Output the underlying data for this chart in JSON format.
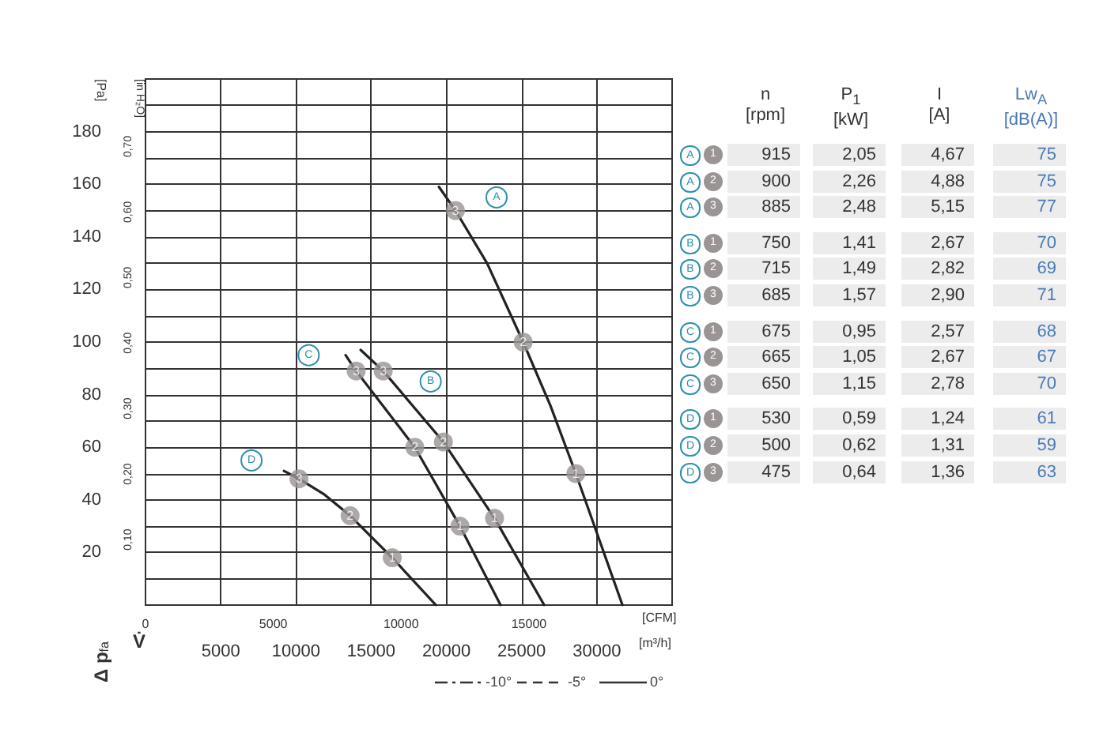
{
  "chart_data": [
    {
      "type": "line",
      "xlabel": "[m³/h]",
      "ylabel": "[Pa]",
      "x2label": "[CFM]",
      "y2label": "[in H₂O]",
      "annotations": [
        "Δ p$_{fa}$",
        "V̇",
        "-10°",
        "-5°",
        "0°",
        {
          "text": "3",
          "x": 20600,
          "y": 150
        },
        {
          "text": "2",
          "x": 25100,
          "y": 100
        },
        {
          "text": "1",
          "x": 28600,
          "y": 50
        },
        {
          "text": "3",
          "x": 15800,
          "y": 89
        },
        {
          "text": "2",
          "x": 19800,
          "y": 62
        },
        {
          "text": "1",
          "x": 23200,
          "y": 33
        },
        {
          "text": "3",
          "x": 14000,
          "y": 89
        },
        {
          "text": "2",
          "x": 17900,
          "y": 60
        },
        {
          "text": "1",
          "x": 20900,
          "y": 30
        },
        {
          "text": "3",
          "x": 10200,
          "y": 48
        },
        {
          "text": "2",
          "x": 13600,
          "y": 34
        },
        {
          "text": "1",
          "x": 16400,
          "y": 18
        }
      ],
      "xlim": [
        0,
        35000
      ],
      "xticks": [
        5000,
        10000,
        15000,
        20000,
        25000,
        30000
      ],
      "x2lim": [
        0,
        20600
      ],
      "x2ticks": [
        0,
        5000,
        10000,
        15000
      ],
      "ylim": [
        0,
        200
      ],
      "yticks": [
        {
          "value": 10,
          "label": null
        },
        20,
        {
          "value": 30,
          "label": null
        },
        40,
        {
          "value": 50,
          "label": null
        },
        60,
        {
          "value": 70,
          "label": null
        },
        80,
        {
          "value": 90,
          "label": null
        },
        100,
        {
          "value": 110,
          "label": null
        },
        120,
        {
          "value": 130,
          "label": null
        },
        140,
        {
          "value": 150,
          "label": null
        },
        160,
        {
          "value": 170,
          "label": null
        },
        180,
        {
          "value": 190,
          "label": null
        }
      ],
      "y2lim": [
        0,
        0.803
      ],
      "y2ticks": [
        {
          "value": 0.1,
          "label": "0,10"
        },
        {
          "value": 0.2,
          "label": "0,20"
        },
        {
          "value": 0.3,
          "label": "0,30"
        },
        {
          "value": 0.4,
          "label": "0,40"
        },
        {
          "value": 0.5,
          "label": "0,50"
        },
        {
          "value": 0.6,
          "label": "0,60"
        },
        {
          "value": 0.7,
          "label": "0,70"
        }
      ],
      "grid": true,
      "line_style": "solid",
      "series": [
        {
          "name": "A",
          "color": "#222222",
          "x": [
            19500,
            20600,
            22700,
            25100,
            26900,
            28600,
            31700
          ],
          "values": [
            159,
            150,
            130,
            100,
            76,
            50,
            0
          ]
        },
        {
          "name": "B",
          "color": "#222222",
          "x": [
            14300,
            15800,
            19800,
            23200,
            26500
          ],
          "values": [
            97,
            89,
            62,
            33,
            0
          ]
        },
        {
          "name": "C",
          "color": "#222222",
          "x": [
            13300,
            14000,
            17900,
            20900,
            23600
          ],
          "values": [
            95,
            89,
            60,
            30,
            0
          ]
        },
        {
          "name": "D",
          "color": "#222222",
          "x": [
            9200,
            10200,
            11900,
            13600,
            16400,
            19300
          ],
          "values": [
            51,
            48,
            42,
            34,
            18,
            0
          ]
        }
      ]
    },
    {
      "type": "other",
      "annotations": [
        "n\n[rpm]",
        "P$_{1}$\n[kW]",
        "I\n[A]",
        "Lw$_{A}$\n[dB(A)]",
        "A",
        "1",
        "915",
        "2,05",
        "4,67",
        "75",
        "A",
        "2",
        "900",
        "2,26",
        "4,88",
        "75",
        "A",
        "3",
        "885",
        "2,48",
        "5,15",
        "77",
        "B",
        "1",
        "750",
        "1,41",
        "2,67",
        "70",
        "B",
        "2",
        "715",
        "1,49",
        "2,82",
        "69",
        "B",
        "3",
        "685",
        "1,57",
        "2,90",
        "71",
        "C",
        "1",
        "675",
        "0,95",
        "2,57",
        "68",
        "C",
        "2",
        "665",
        "1,05",
        "2,67",
        "67",
        "C",
        "3",
        "650",
        "1,15",
        "2,78",
        "70",
        "D",
        "1",
        "530",
        "0,59",
        "1,24",
        "61",
        "D",
        "2",
        "500",
        "0,62",
        "1,31",
        "59",
        "D",
        "3",
        "475",
        "0,64",
        "1,36",
        "63"
      ]
    }
  ]
}
